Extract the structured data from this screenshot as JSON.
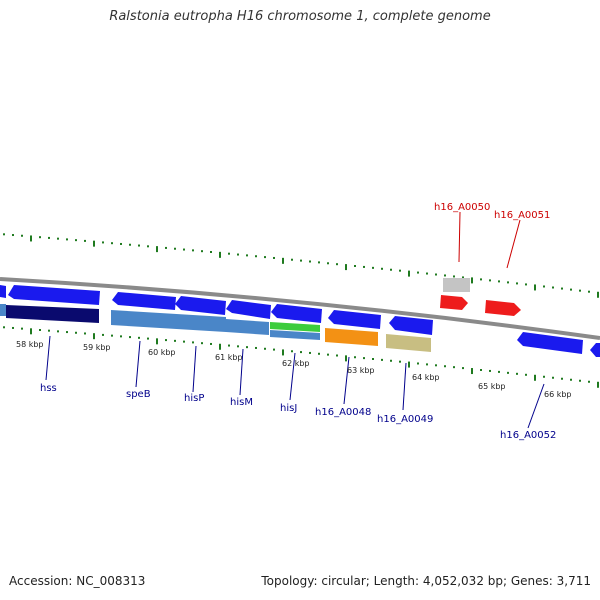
{
  "title": "Ralstonia eutropha H16 chromosome 1, complete genome",
  "footer": {
    "accession_label": "Accession: NC_008313",
    "summary": "Topology: circular; Length: 4,052,032 bp; Genes: 3,711"
  },
  "colors": {
    "backbone": "#8a8a8a",
    "tick": "#1f7a1f",
    "gene_blue": "#1a1aee",
    "gene_red": "#ee1c1c",
    "gene_navy": "#0a0a6e",
    "gene_steel": "#4a86c8",
    "gene_green": "#3ccc3c",
    "gene_orange": "#f39114",
    "gene_khaki": "#c8be82",
    "gene_gray": "#c4c4c4",
    "label_blue": "#00008b",
    "label_red": "#cc0000"
  },
  "scale_labels": [
    "58 kbp",
    "59 kbp",
    "60 kbp",
    "61 kbp",
    "62 kbp",
    "63 kbp",
    "64 kbp",
    "65 kbp",
    "66 kbp"
  ],
  "gene_labels": {
    "hss": "hss",
    "speB": "speB",
    "hisP": "hisP",
    "hisM": "hisM",
    "hisJ": "hisJ",
    "h16_A0048": "h16_A0048",
    "h16_A0049": "h16_A0049",
    "h16_A0050": "h16_A0050",
    "h16_A0051": "h16_A0051",
    "h16_A0052": "h16_A0052"
  }
}
